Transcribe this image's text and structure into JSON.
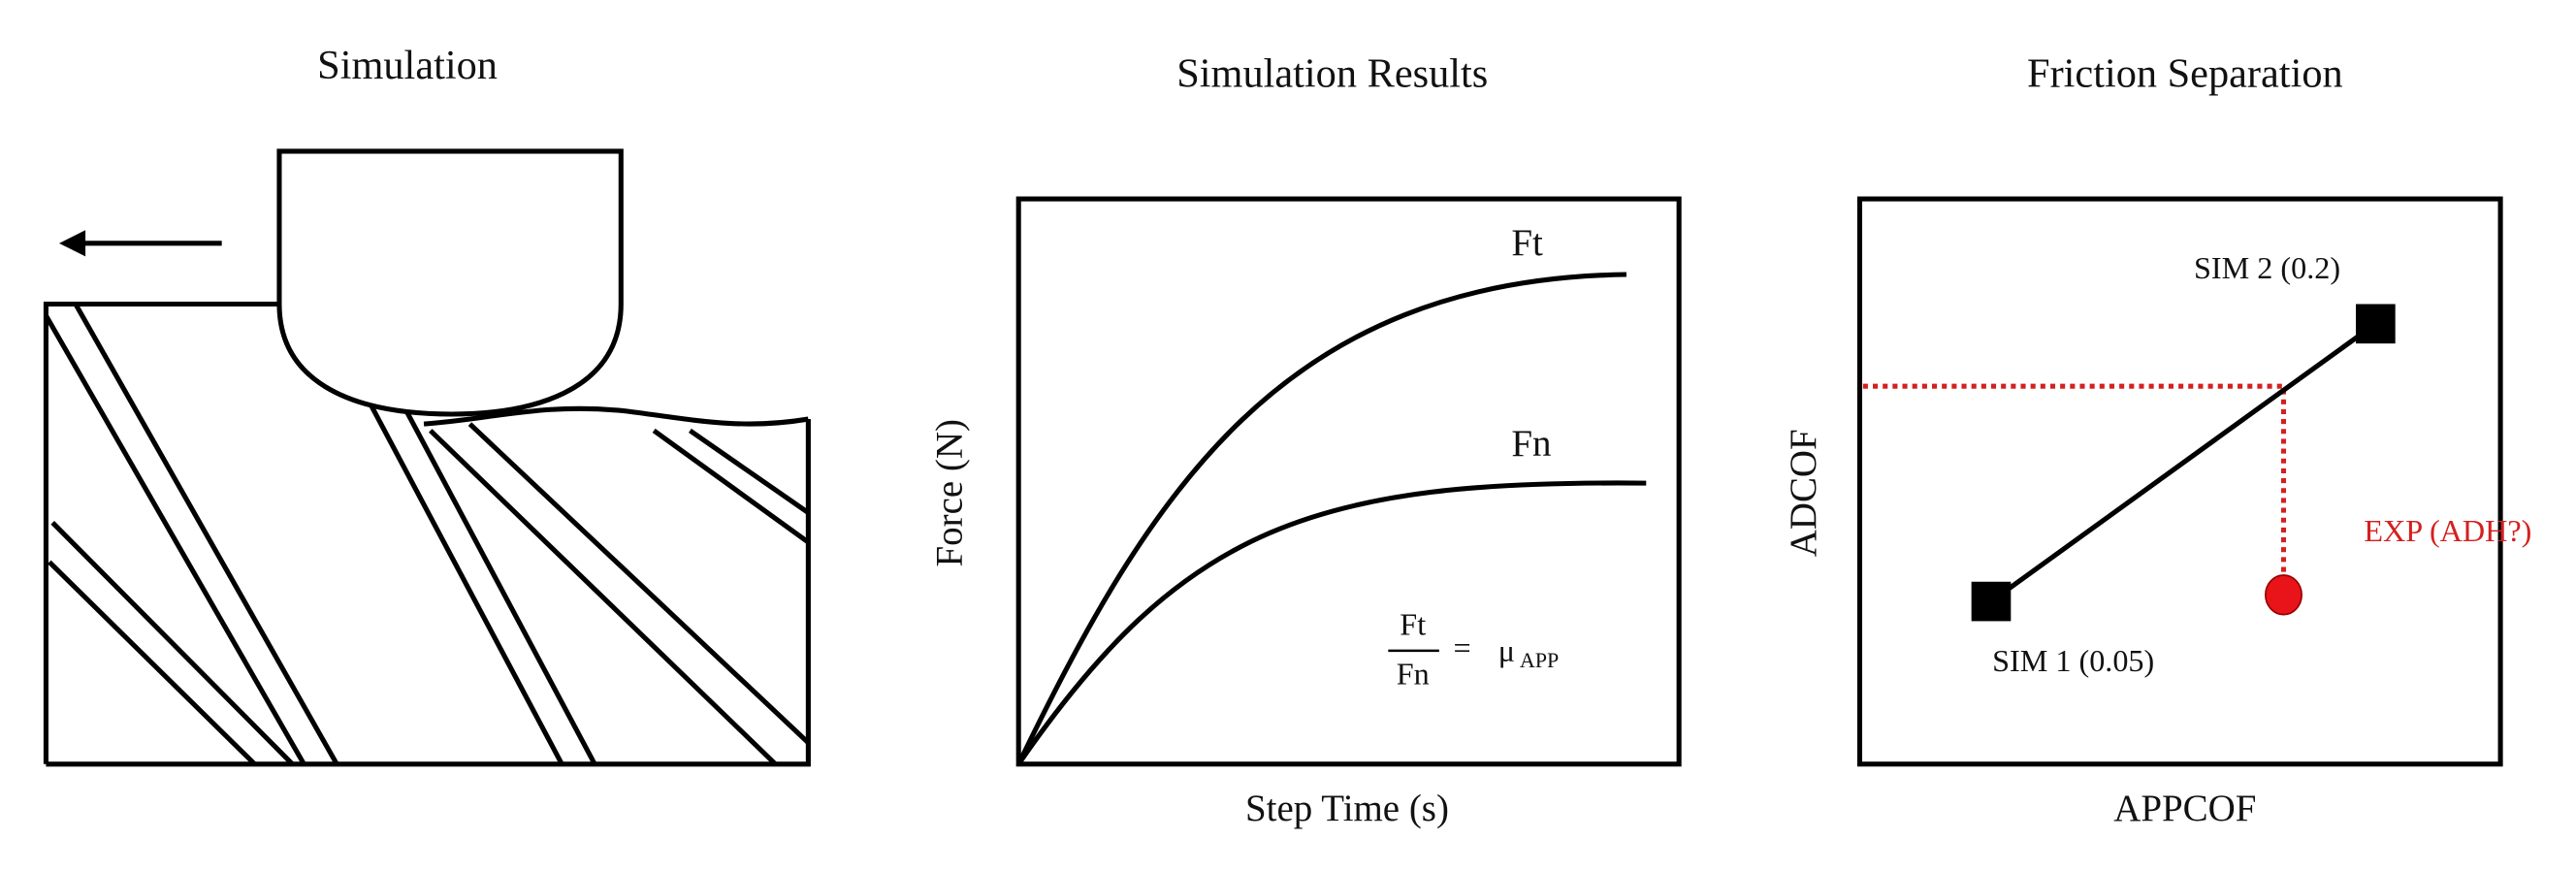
{
  "panels": [
    {
      "title": "Simulation"
    },
    {
      "title": "Simulation Results",
      "x_label": "Step Time (s)",
      "y_label": "Force (N)",
      "curves": [
        "Ft",
        "Fn"
      ],
      "formula": {
        "numerator": "Ft",
        "denominator": "Fn",
        "equals": "=",
        "symbol": "μ",
        "subscript": "APP"
      }
    },
    {
      "title": "Friction Separation",
      "x_label": "APPCOF",
      "y_label": "ADCOF",
      "points": [
        "SIM 1 (0.05)",
        "SIM 2 (0.2)",
        "EXP (ADH?)"
      ]
    }
  ]
}
